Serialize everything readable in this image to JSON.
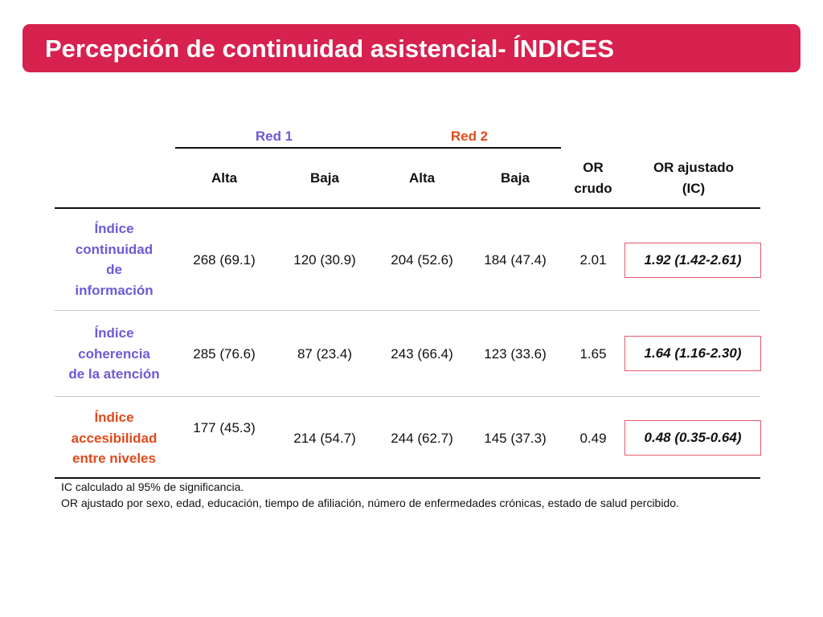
{
  "slide": {
    "title": "Percepción de continuidad asistencial- ÍNDICES"
  },
  "table": {
    "groups": [
      {
        "label": "Red 1",
        "color": "#6b5bd6"
      },
      {
        "label": "Red 2",
        "color": "#e04a1c"
      }
    ],
    "columns": [
      "Alta",
      "Baja",
      "Alta",
      "Baja"
    ],
    "or_crudo_header": [
      "OR",
      "crudo"
    ],
    "or_ajustado_header": [
      "OR ajustado",
      "(IC)"
    ],
    "rows": [
      {
        "label": [
          "Índice",
          "continuidad",
          "de",
          "información"
        ],
        "label_color": "#6b5bd6",
        "values": [
          "268 (69.1)",
          "120 (30.9)",
          "204 (52.6)",
          "184 (47.4)"
        ],
        "or_crudo": "2.01",
        "or_ajustado": "1.92 (1.42-2.61)"
      },
      {
        "label": [
          "Índice",
          "coherencia",
          "de la atención"
        ],
        "label_color": "#6b5bd6",
        "values": [
          "285 (76.6)",
          "87 (23.4)",
          "243 (66.4)",
          "123 (33.6)"
        ],
        "or_crudo": "1.65",
        "or_ajustado": "1.64 (1.16-2.30)"
      },
      {
        "label": [
          "Índice",
          "accesibilidad",
          "entre niveles"
        ],
        "label_color": "#e04a1c",
        "values": [
          "177 (45.3)",
          "214 (54.7)",
          "244 (62.7)",
          "145 (37.3)"
        ],
        "or_crudo": "0.49",
        "or_ajustado": "0.48 (0.35-0.64)"
      }
    ]
  },
  "notes": [
    "IC calculado al 95% de significancia.",
    "OR ajustado por sexo, edad, educación, tiempo de afiliación, número de enfermedades crónicas, estado de salud percibido."
  ],
  "colors": {
    "title_bar": "#d7214f",
    "red1": "#6b5bd6",
    "red2": "#e04a1c",
    "box_border": "#e35a6e"
  }
}
